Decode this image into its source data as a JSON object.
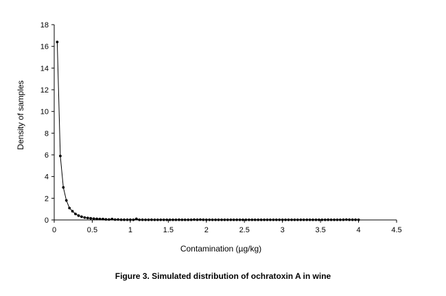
{
  "figure": {
    "caption": "Figure 3.  Simulated distribution of ochratoxin A in wine"
  },
  "chart_data": {
    "type": "line",
    "title": "",
    "xlabel": "Contamination    (µg/kg)",
    "ylabel": "Density of samples",
    "xlim": [
      0,
      4.5
    ],
    "ylim": [
      0,
      18
    ],
    "xticks": [
      "0",
      "0.5",
      "1",
      "1.5",
      "2",
      "2.5",
      "3",
      "3.5",
      "4",
      "4.5"
    ],
    "yticks": [
      "0",
      "2",
      "4",
      "6",
      "8",
      "10",
      "12",
      "14",
      "16",
      "18"
    ],
    "grid": false,
    "marker": "filled-circle",
    "line_color": "#000000",
    "series": [
      {
        "x": [
          0.04,
          0.08,
          0.12,
          0.16,
          0.2,
          0.24,
          0.28,
          0.32,
          0.36,
          0.4,
          0.44,
          0.48,
          0.52,
          0.56,
          0.6,
          0.64,
          0.68,
          0.72,
          0.76,
          0.8,
          0.84,
          0.88,
          0.92,
          0.96,
          1.0,
          1.04,
          1.08,
          1.12,
          1.16,
          1.2,
          1.24,
          1.28,
          1.32,
          1.36,
          1.4,
          1.44,
          1.48,
          1.52,
          1.56,
          1.6,
          1.64,
          1.68,
          1.72,
          1.76,
          1.8,
          1.84,
          1.88,
          1.92,
          1.96,
          2.0,
          2.04,
          2.08,
          2.12,
          2.16,
          2.2,
          2.24,
          2.28,
          2.32,
          2.36,
          2.4,
          2.44,
          2.48,
          2.52,
          2.56,
          2.6,
          2.64,
          2.68,
          2.72,
          2.76,
          2.8,
          2.84,
          2.88,
          2.92,
          2.96,
          3.0,
          3.04,
          3.08,
          3.12,
          3.16,
          3.2,
          3.24,
          3.28,
          3.32,
          3.36,
          3.4,
          3.44,
          3.48,
          3.52,
          3.56,
          3.6,
          3.64,
          3.68,
          3.72,
          3.76,
          3.8,
          3.84,
          3.88,
          3.92,
          3.96,
          4.0
        ],
        "values": [
          16.4,
          5.9,
          3.0,
          1.8,
          1.1,
          0.8,
          0.55,
          0.4,
          0.3,
          0.22,
          0.18,
          0.15,
          0.12,
          0.1,
          0.09,
          0.08,
          0.05,
          0.04,
          0.08,
          0.03,
          0.04,
          0.02,
          0.02,
          0.02,
          0.02,
          0.01,
          0.1,
          0.01,
          0.02,
          0.01,
          0.01,
          0.02,
          0.01,
          0.01,
          0.01,
          0.01,
          0.01,
          0.01,
          0.01,
          0.01,
          0.02,
          0.01,
          0.01,
          0.01,
          0.01,
          0.03,
          0.02,
          0.03,
          0.02,
          0.01,
          0.01,
          0.01,
          0.01,
          0.01,
          0.01,
          0.01,
          0.01,
          0.01,
          0.01,
          0.01,
          0.01,
          0.01,
          0.01,
          0.01,
          0.01,
          0.01,
          0.01,
          0.01,
          0.01,
          0.01,
          0.01,
          0.01,
          0.01,
          0.01,
          0.01,
          0.01,
          0.01,
          0.01,
          0.01,
          0.01,
          0.01,
          0.01,
          0.01,
          0.01,
          0.01,
          0.01,
          0.01,
          0.01,
          0.01,
          0.02,
          0.01,
          0.01,
          0.01,
          0.01,
          0.02,
          0.03,
          0.02,
          0.02,
          0.02,
          0.01
        ]
      }
    ]
  }
}
